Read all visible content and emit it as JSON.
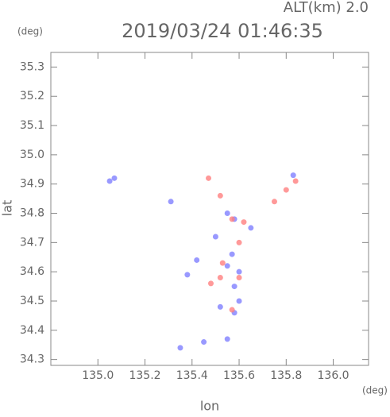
{
  "chart_data": {
    "type": "scatter",
    "header": "ALT(km) 2.0",
    "title": "2019/03/24 01:46:35",
    "y_unit": "(deg)",
    "x_unit": "(deg)",
    "xlabel": "lon",
    "ylabel": "lat",
    "xlim": [
      134.8,
      136.15
    ],
    "ylim": [
      34.28,
      35.35
    ],
    "xticks": [
      {
        "value": 135.0,
        "label": "135.0"
      },
      135.2,
      135.4,
      135.6,
      135.8,
      {
        "value": 136.0,
        "label": "136.0"
      }
    ],
    "yticks": [
      34.3,
      34.4,
      34.5,
      34.6,
      34.7,
      34.8,
      34.9,
      {
        "value": 35.0,
        "label": "35.0"
      },
      35.1,
      35.2,
      35.3
    ],
    "series": [
      {
        "color": "#7f7fff",
        "x": [
          135.05,
          135.07,
          135.31,
          135.55,
          135.58,
          135.65,
          135.83,
          135.42,
          135.55,
          135.6,
          135.58,
          135.52,
          135.6,
          135.35,
          135.45,
          135.55,
          135.58,
          135.38,
          135.5,
          135.57
        ],
        "y": [
          34.91,
          34.92,
          34.84,
          34.8,
          34.78,
          34.75,
          34.93,
          34.64,
          34.62,
          34.6,
          34.55,
          34.48,
          34.5,
          34.34,
          34.36,
          34.37,
          34.46,
          34.59,
          34.72,
          34.66
        ]
      },
      {
        "color": "#ff7f7f",
        "x": [
          135.47,
          135.52,
          135.57,
          135.62,
          135.6,
          135.53,
          135.6,
          135.52,
          135.75,
          135.8,
          135.84,
          135.57,
          135.48
        ],
        "y": [
          34.92,
          34.86,
          34.78,
          34.77,
          34.7,
          34.63,
          34.58,
          34.58,
          34.84,
          34.88,
          34.91,
          34.47,
          34.56
        ]
      }
    ]
  }
}
